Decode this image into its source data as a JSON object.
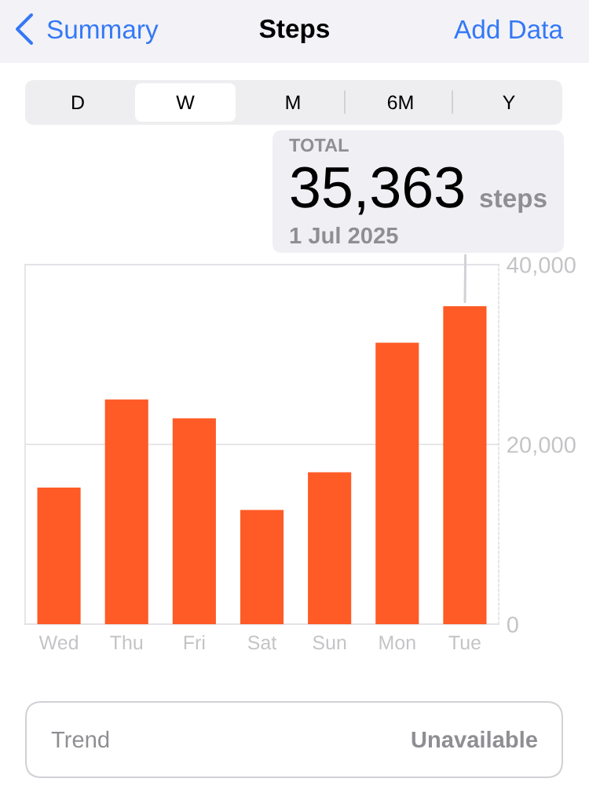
{
  "chart_data": {
    "type": "bar",
    "title": "Steps",
    "categories": [
      "Wed",
      "Thu",
      "Fri",
      "Sat",
      "Sun",
      "Mon",
      "Tue"
    ],
    "values": [
      15200,
      25000,
      22900,
      12700,
      16900,
      31300,
      35363
    ],
    "color": "#fe5b26",
    "value_labels": [
      null,
      null,
      null,
      null,
      null,
      null,
      "35,363"
    ],
    "ylim": [
      0,
      40000
    ],
    "yticks": [
      0,
      {
        "value": 20000,
        "label": "20,000"
      },
      {
        "value": 40000,
        "label": "40,000"
      }
    ],
    "grid": "y",
    "annotations": [
      "Summary",
      "Add Data",
      "D",
      "W",
      "M",
      "6M",
      "Y",
      "TOTAL",
      "steps",
      "1 Jul 2025",
      "Trend",
      "Unavailable"
    ]
  }
}
